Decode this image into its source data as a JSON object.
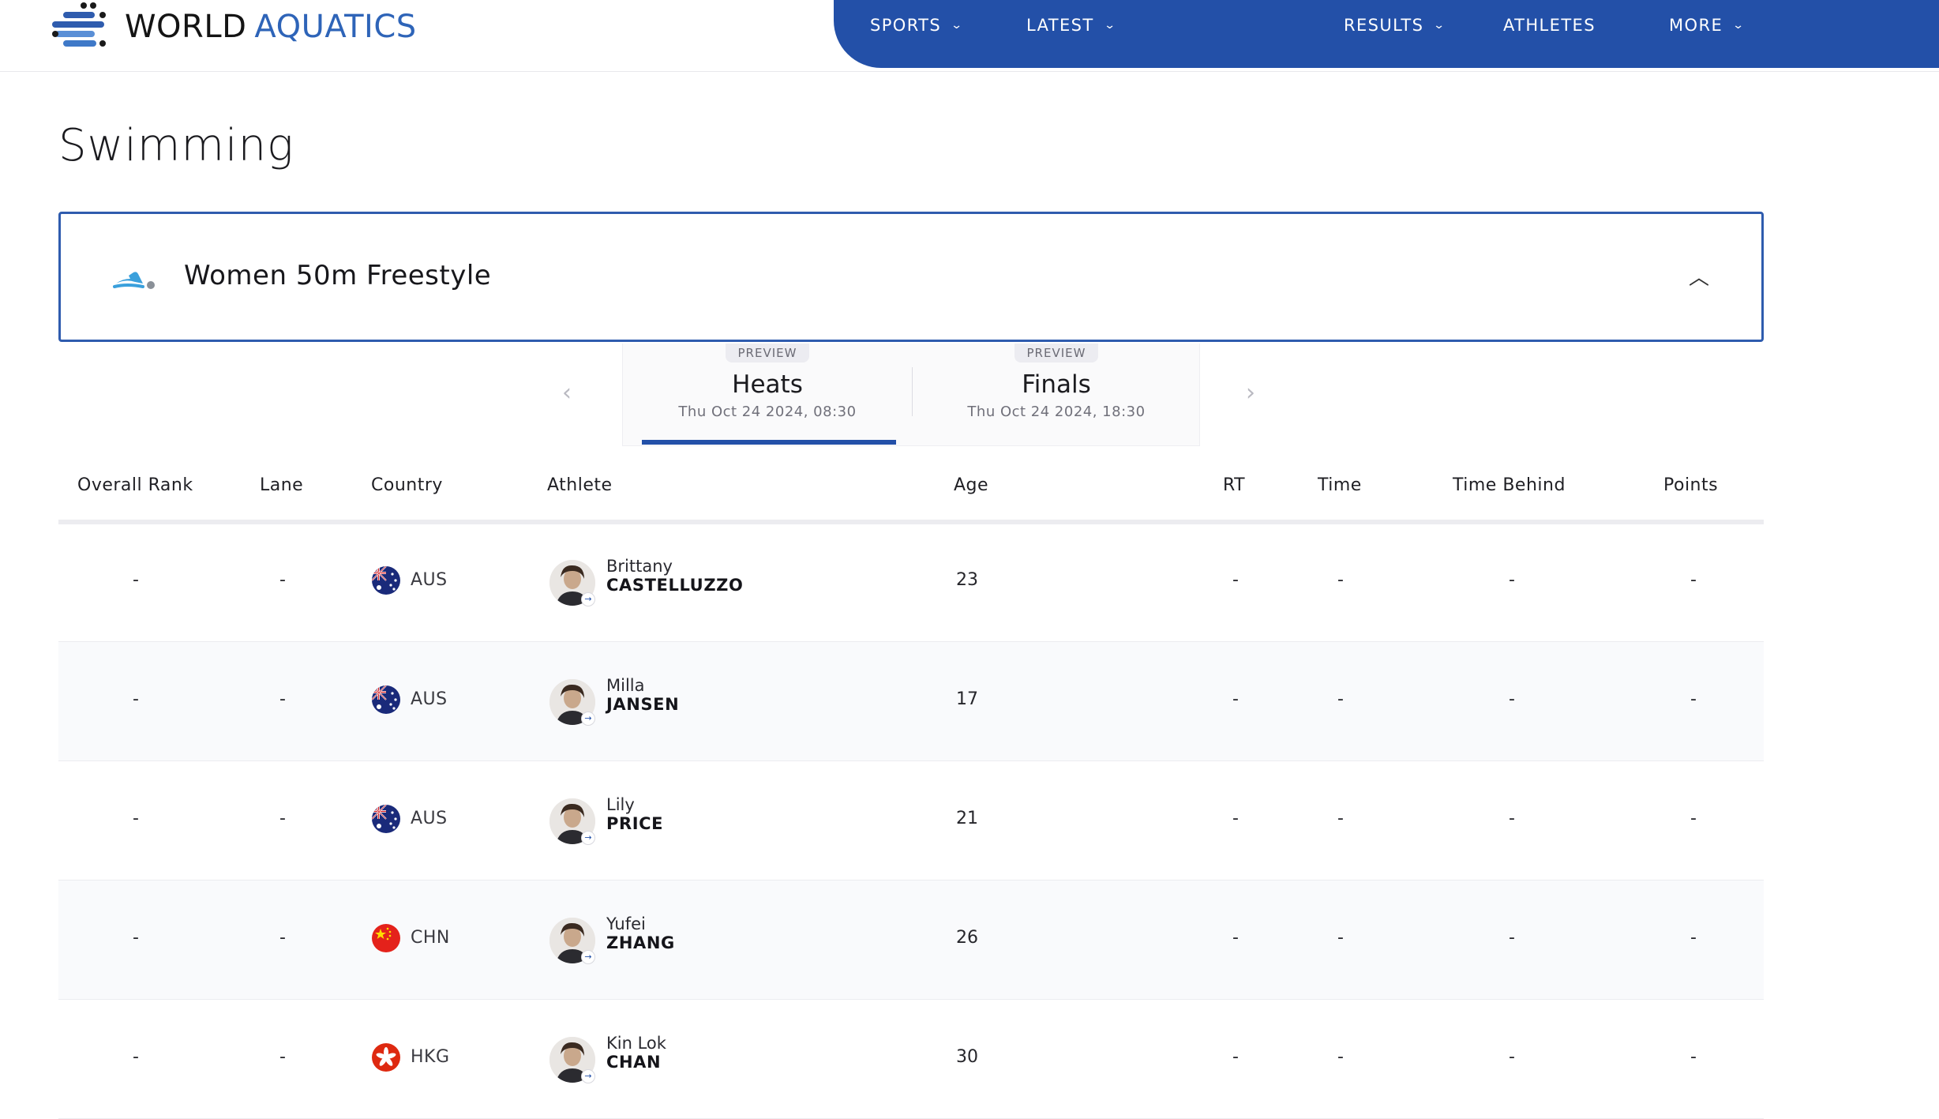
{
  "brand": {
    "word1": "WORLD",
    "word2": "AQUATICS"
  },
  "nav": [
    {
      "label": "SPORTS",
      "has_menu": true
    },
    {
      "label": "LATEST",
      "has_menu": true
    },
    {
      "label": "RESULTS",
      "has_menu": true
    },
    {
      "label": "ATHLETES",
      "has_menu": false
    },
    {
      "label": "MORE",
      "has_menu": true
    }
  ],
  "page": {
    "title": "Swimming"
  },
  "event": {
    "name": "Women 50m Freestyle",
    "icon": "swimmer-icon",
    "collapse_icon": "chevron-up-icon"
  },
  "phases": [
    {
      "badge": "PREVIEW",
      "name": "Heats",
      "date": "Thu Oct 24 2024, 08:30",
      "active": true
    },
    {
      "badge": "PREVIEW",
      "name": "Finals",
      "date": "Thu Oct 24 2024, 18:30",
      "active": false
    }
  ],
  "table": {
    "headers": {
      "rank": "Overall Rank",
      "lane": "Lane",
      "country": "Country",
      "athlete": "Athlete",
      "age": "Age",
      "rt": "RT",
      "time": "Time",
      "time_behind": "Time Behind",
      "points": "Points"
    },
    "rows": [
      {
        "rank": "-",
        "lane": "-",
        "country": "AUS",
        "flag": "aus",
        "first": "Brittany",
        "last": "CASTELLUZZO",
        "age": "23",
        "rt": "-",
        "time": "-",
        "behind": "-",
        "points": "-"
      },
      {
        "rank": "-",
        "lane": "-",
        "country": "AUS",
        "flag": "aus",
        "first": "Milla",
        "last": "JANSEN",
        "age": "17",
        "rt": "-",
        "time": "-",
        "behind": "-",
        "points": "-"
      },
      {
        "rank": "-",
        "lane": "-",
        "country": "AUS",
        "flag": "aus",
        "first": "Lily",
        "last": "PRICE",
        "age": "21",
        "rt": "-",
        "time": "-",
        "behind": "-",
        "points": "-"
      },
      {
        "rank": "-",
        "lane": "-",
        "country": "CHN",
        "flag": "chn",
        "first": "Yufei",
        "last": "ZHANG",
        "age": "26",
        "rt": "-",
        "time": "-",
        "behind": "-",
        "points": "-"
      },
      {
        "rank": "-",
        "lane": "-",
        "country": "HKG",
        "flag": "hkg",
        "first": "Kin Lok",
        "last": "CHAN",
        "age": "30",
        "rt": "-",
        "time": "-",
        "behind": "-",
        "points": "-"
      }
    ]
  },
  "colors": {
    "brand_blue": "#2350a8",
    "accent_blue": "#2e64b8",
    "icon_blue": "#3aa0dc"
  }
}
